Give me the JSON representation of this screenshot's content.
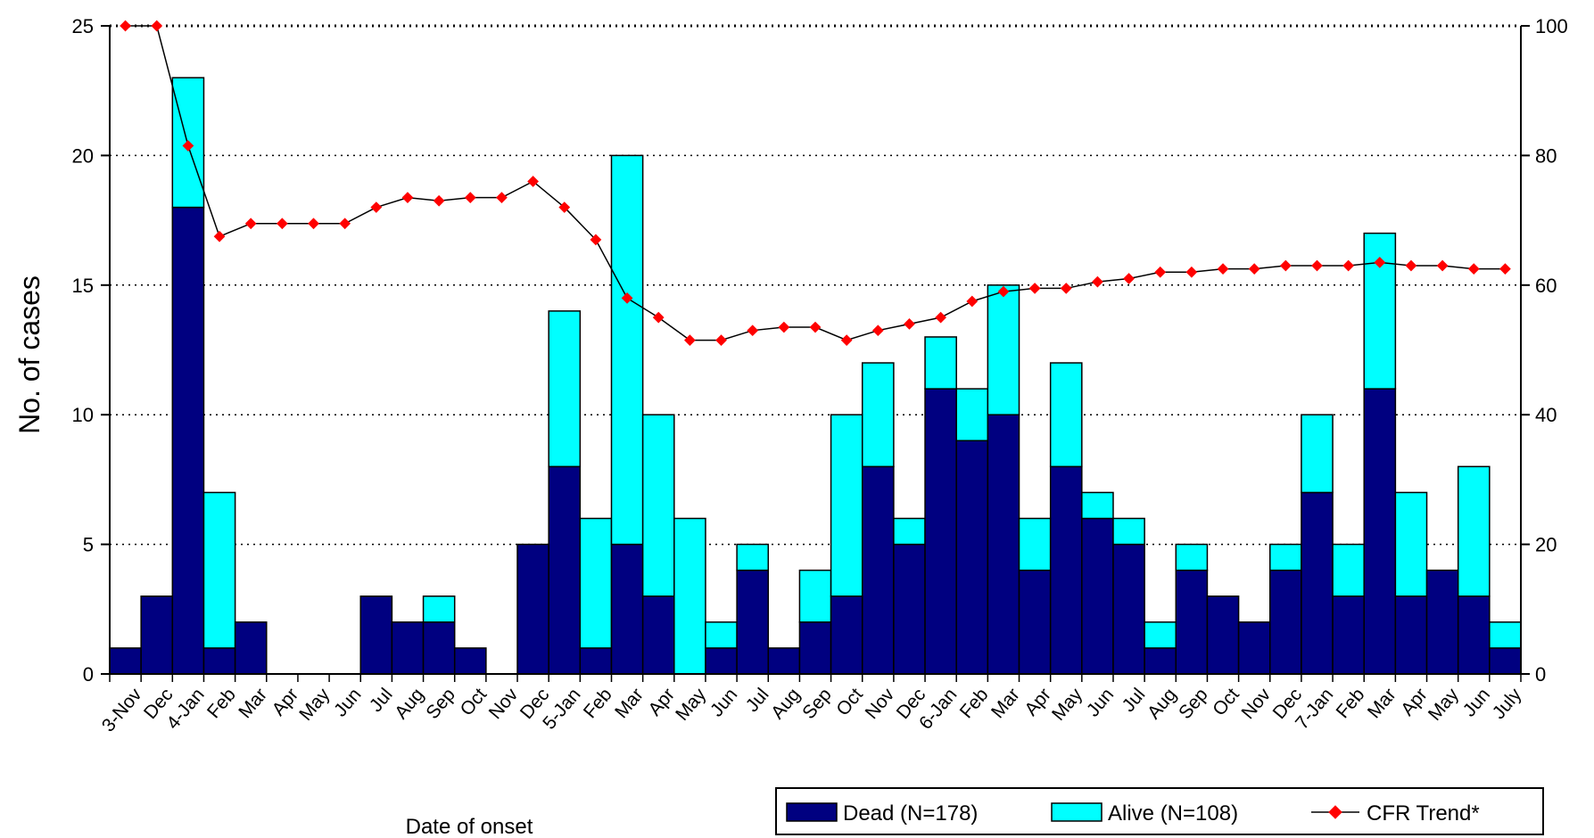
{
  "chart_data": {
    "type": "bar",
    "stacked": true,
    "categories": [
      "3-Nov",
      "Dec",
      "4-Jan",
      "Feb",
      "Mar",
      "Apr",
      "May",
      "Jun",
      "Jul",
      "Aug",
      "Sep",
      "Oct",
      "Nov",
      "Dec",
      "5-Jan",
      "Feb",
      "Mar",
      "Apr",
      "May",
      "Jun",
      "Jul",
      "Aug",
      "Sep",
      "Oct",
      "Nov",
      "Dec",
      "6-Jan",
      "Feb",
      "Mar",
      "Apr",
      "May",
      "Jun",
      "Jul",
      "Aug",
      "Sep",
      "Oct",
      "Nov",
      "Dec",
      "7-Jan",
      "Feb",
      "Mar",
      "Apr",
      "May",
      "Jun",
      "July"
    ],
    "series": [
      {
        "name": "Dead (N=178)",
        "color": "#000080",
        "values": [
          1,
          3,
          18,
          1,
          2,
          0,
          0,
          0,
          3,
          2,
          2,
          1,
          0,
          5,
          8,
          1,
          5,
          3,
          0,
          1,
          4,
          1,
          2,
          3,
          8,
          5,
          11,
          9,
          10,
          4,
          8,
          6,
          5,
          1,
          4,
          3,
          2,
          4,
          7,
          3,
          11,
          3,
          4,
          3,
          1
        ]
      },
      {
        "name": "Alive (N=108)",
        "color": "#00ffff",
        "values": [
          0,
          0,
          5,
          6,
          0,
          0,
          0,
          0,
          0,
          0,
          1,
          0,
          0,
          0,
          6,
          5,
          15,
          7,
          6,
          1,
          1,
          0,
          2,
          7,
          4,
          1,
          2,
          2,
          5,
          2,
          4,
          1,
          1,
          1,
          1,
          0,
          0,
          1,
          3,
          2,
          6,
          4,
          0,
          5,
          1
        ]
      },
      {
        "name": "CFR Trend*",
        "color": "#ff0000",
        "axis": "right",
        "values": [
          100,
          100,
          81.5,
          67.5,
          69.5,
          69.5,
          69.5,
          69.5,
          72,
          73.5,
          73,
          73.5,
          73.5,
          76,
          72,
          67,
          58,
          55,
          51.5,
          51.5,
          53,
          53.5,
          53.5,
          51.5,
          53,
          54,
          55,
          57.5,
          59,
          59.5,
          59.5,
          60.5,
          61,
          62,
          62,
          62.5,
          62.5,
          63,
          63,
          63,
          63.5,
          63,
          63,
          62.5,
          62.5
        ]
      }
    ],
    "ylabel": "No. of cases",
    "xlabel": "Date of onset",
    "ylim": [
      0,
      25
    ],
    "yticks": [
      "0",
      "5",
      "10",
      "15",
      "20",
      "25"
    ],
    "y2lim": [
      0,
      100
    ],
    "y2ticks": [
      "0",
      "20",
      "40",
      "60",
      "80",
      "100"
    ],
    "grid": "dotted horizontal",
    "legend_position": "bottom-right"
  }
}
